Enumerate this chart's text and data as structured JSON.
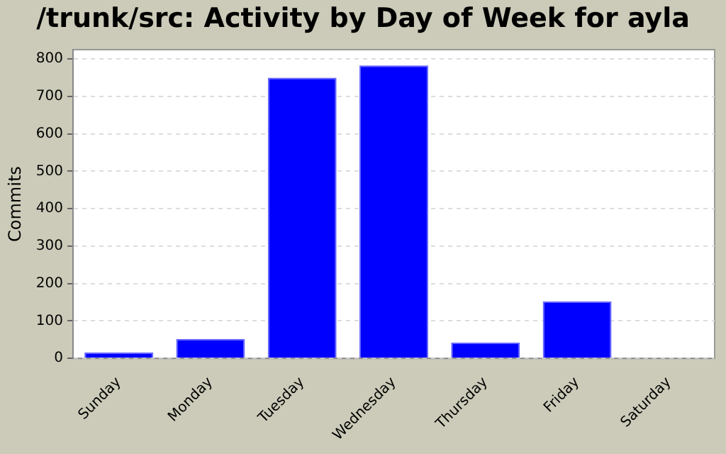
{
  "chart_data": {
    "type": "bar",
    "title": "/trunk/src: Activity by Day of Week for ayla",
    "ylabel": "Commits",
    "categories": [
      "Sunday",
      "Monday",
      "Tuesday",
      "Wednesday",
      "Thursday",
      "Friday",
      "Saturday"
    ],
    "values": [
      16,
      52,
      750,
      783,
      42,
      152,
      0
    ],
    "color": "#0000ff",
    "ylim": [
      0,
      825
    ],
    "yticks": [
      0,
      100,
      200,
      300,
      400,
      500,
      600,
      700,
      800
    ],
    "grid": "y"
  }
}
